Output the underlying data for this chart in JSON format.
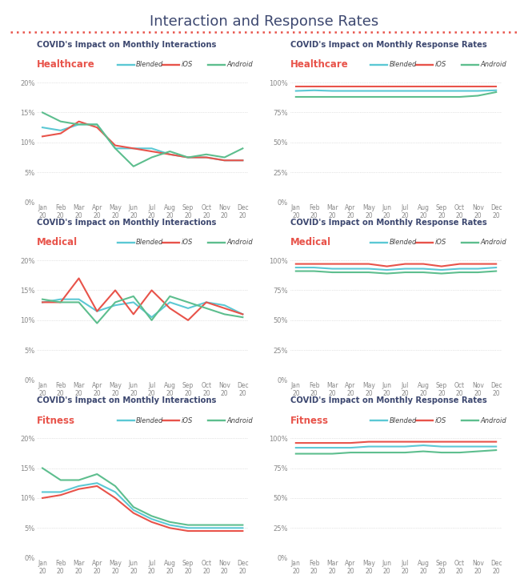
{
  "title": "Interaction and Response Rates",
  "title_color": "#3d4870",
  "title_fontsize": 13,
  "separator_color": "#e8534a",
  "months_top": [
    "Jan",
    "Feb",
    "Mar",
    "Apr",
    "May",
    "Jun",
    "Jul",
    "Aug",
    "Sep",
    "Oct",
    "Nov",
    "Dec"
  ],
  "months_bot": [
    "20",
    "20",
    "20",
    "20",
    "20",
    "20",
    "20",
    "20",
    "20",
    "20",
    "20",
    "20"
  ],
  "section_title_left": "COVID's Impact on Monthly Interactions",
  "section_title_right": "COVID's Impact on Monthly Response Rates",
  "category_labels": [
    "Healthcare",
    "Medical",
    "Fitness"
  ],
  "category_color": "#e8534a",
  "blended_color": "#5bc8d4",
  "ios_color": "#e8534a",
  "android_color": "#5dbe8e",
  "line_width": 1.5,
  "interactions": {
    "Healthcare": {
      "Blended": [
        12.5,
        12.0,
        13.0,
        13.0,
        9.0,
        9.0,
        9.0,
        8.0,
        7.5,
        7.5,
        7.0,
        7.0
      ],
      "iOS": [
        11.0,
        11.5,
        13.5,
        12.5,
        9.5,
        9.0,
        8.5,
        8.0,
        7.5,
        7.5,
        7.0,
        7.0
      ],
      "Android": [
        15.0,
        13.5,
        13.0,
        13.0,
        9.0,
        6.0,
        7.5,
        8.5,
        7.5,
        8.0,
        7.5,
        9.0
      ]
    },
    "Medical": {
      "Blended": [
        13.0,
        13.5,
        13.5,
        11.5,
        12.5,
        13.0,
        10.5,
        13.0,
        12.0,
        13.0,
        12.5,
        11.0
      ],
      "iOS": [
        13.0,
        13.0,
        17.0,
        11.5,
        15.0,
        11.0,
        15.0,
        12.0,
        10.0,
        13.0,
        12.0,
        11.0
      ],
      "Android": [
        13.5,
        13.0,
        13.0,
        9.5,
        13.0,
        14.0,
        10.0,
        14.0,
        13.0,
        12.0,
        11.0,
        10.5
      ]
    },
    "Fitness": {
      "Blended": [
        11.0,
        11.0,
        12.0,
        12.5,
        11.0,
        8.0,
        6.5,
        5.5,
        5.0,
        5.0,
        5.0,
        5.0
      ],
      "iOS": [
        10.0,
        10.5,
        11.5,
        12.0,
        10.0,
        7.5,
        6.0,
        5.0,
        4.5,
        4.5,
        4.5,
        4.5
      ],
      "Android": [
        15.0,
        13.0,
        13.0,
        14.0,
        12.0,
        8.5,
        7.0,
        6.0,
        5.5,
        5.5,
        5.5,
        5.5
      ]
    }
  },
  "response_rates": {
    "Healthcare": {
      "Blended": [
        93,
        93.5,
        93,
        93,
        93,
        93,
        93,
        93,
        93,
        93,
        93,
        93.5
      ],
      "iOS": [
        97,
        97,
        97,
        97,
        97,
        97,
        97,
        97,
        97,
        97,
        97,
        97
      ],
      "Android": [
        88,
        88,
        88,
        88,
        88,
        88,
        88,
        88,
        88,
        88,
        89,
        92
      ]
    },
    "Medical": {
      "Blended": [
        94,
        94,
        93,
        93,
        93,
        92,
        93,
        93,
        92,
        93,
        93,
        94
      ],
      "iOS": [
        97,
        97,
        97,
        97,
        97,
        95,
        97,
        97,
        95,
        97,
        97,
        97
      ],
      "Android": [
        91,
        91,
        90,
        90,
        90,
        89,
        90,
        90,
        89,
        90,
        90,
        91
      ]
    },
    "Fitness": {
      "Blended": [
        92,
        92,
        92,
        92,
        93,
        93,
        93,
        94,
        93,
        93,
        93,
        93
      ],
      "iOS": [
        96,
        96,
        96,
        96,
        97,
        97,
        97,
        97,
        97,
        97,
        97,
        97
      ],
      "Android": [
        87,
        87,
        87,
        88,
        88,
        88,
        88,
        89,
        88,
        88,
        89,
        90
      ]
    }
  }
}
